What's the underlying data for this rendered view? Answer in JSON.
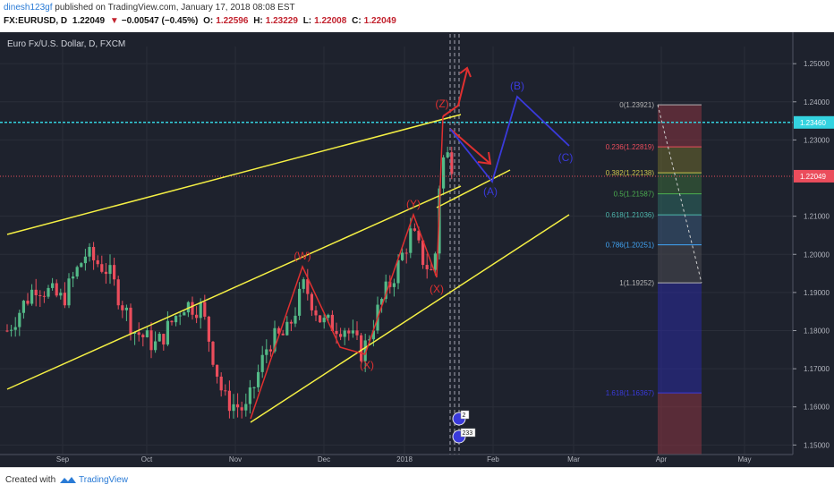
{
  "header": {
    "user": "dinesh123gf",
    "published": " published on TradingView.com, January 17, 2018 08:08 EST",
    "symbol": "FX:EURUSD, D",
    "last": "1.22049",
    "change_arrow": "▼",
    "change": "−0.00547 (−0.45%)",
    "open_label": "O:",
    "open": "1.22596",
    "high_label": "H:",
    "high": "1.23229",
    "low_label": "L:",
    "low": "1.22008",
    "close_label": "C:",
    "close": "1.22049"
  },
  "footer": {
    "created": "Created with",
    "brand": "TradingView"
  },
  "colors": {
    "background": "#1e222d",
    "up": "#53b987",
    "down": "#eb4d5c",
    "trendline": "#f5f044",
    "wave_red": "#e03030",
    "wave_blue": "#3a3adb",
    "cyan_line": "#34d3e0"
  },
  "chart_data": {
    "type": "candlestick",
    "title": "Euro Fx/U.S. Dollar, D, FXCM",
    "x_ticks": [
      "Sep",
      "Oct",
      "Nov",
      "Dec",
      "2018",
      "Feb",
      "Mar",
      "Apr",
      "May"
    ],
    "y_ticks": [
      "1.25000",
      "1.24000",
      "1.23000",
      "1.21000",
      "1.20000",
      "1.19000",
      "1.18000",
      "1.17000",
      "1.16000",
      "1.15000"
    ],
    "ylim": [
      1.1475,
      1.2545
    ],
    "price_labels": [
      {
        "text": "1.23460",
        "value": 1.2346,
        "color": "#34d3e0"
      },
      {
        "text": "1.22049",
        "value": 1.22049,
        "color": "#eb4d5c"
      }
    ],
    "wave_labels": [
      {
        "text": "(Z)",
        "color": "#e03030"
      },
      {
        "text": "(Y)",
        "color": "#e03030"
      },
      {
        "text": "(W)",
        "color": "#e03030"
      },
      {
        "text": "(X)",
        "color": "#e03030"
      },
      {
        "text": "(X)",
        "color": "#e03030"
      },
      {
        "text": "(A)",
        "color": "#3a3adb"
      },
      {
        "text": "(B)",
        "color": "#3a3adb"
      },
      {
        "text": "(C)",
        "color": "#3a3adb"
      }
    ],
    "fib_levels": [
      {
        "label": "0(1.23921)",
        "ratio": 0,
        "value": 1.23921,
        "color": "#b4b4b4"
      },
      {
        "label": "0.236(1.22819)",
        "ratio": 0.236,
        "value": 1.22819,
        "color": "#eb4d5c"
      },
      {
        "label": "0.382(1.22138)",
        "ratio": 0.382,
        "value": 1.22138,
        "color": "#c9c34a"
      },
      {
        "label": "0.5(1.21587)",
        "ratio": 0.5,
        "value": 1.21587,
        "color": "#4caf50"
      },
      {
        "label": "0.618(1.21036)",
        "ratio": 0.618,
        "value": 1.21036,
        "color": "#4db6ac"
      },
      {
        "label": "0.786(1.20251)",
        "ratio": 0.786,
        "value": 1.20251,
        "color": "#42a5f5"
      },
      {
        "label": "1(1.19252)",
        "ratio": 1,
        "value": 1.19252,
        "color": "#b4b4b4"
      },
      {
        "label": "1.618(1.16367)",
        "ratio": 1.618,
        "value": 1.16367,
        "color": "#3a3adb"
      }
    ],
    "event_badges": [
      "2",
      "233"
    ]
  }
}
